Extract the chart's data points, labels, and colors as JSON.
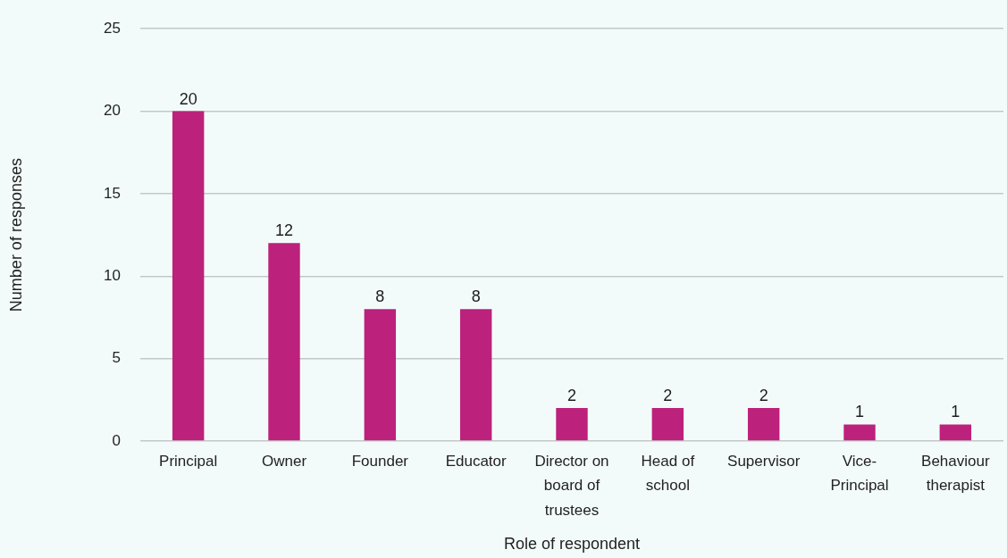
{
  "chart_data": {
    "type": "bar",
    "xlabel": "Role of respondent",
    "ylabel": "Number of responses",
    "categories": [
      "Principal",
      "Owner",
      "Founder",
      "Educator",
      "Director on board of trustees",
      "Head of school",
      "Supervisor",
      "Vice-Principal",
      "Behaviour therapist"
    ],
    "values": [
      20,
      12,
      8,
      8,
      2,
      2,
      2,
      1,
      1
    ],
    "color": "#bc217c",
    "ylim": [
      0,
      25
    ],
    "yticks": [
      0,
      5,
      10,
      15,
      20,
      25
    ],
    "grid": "y",
    "data_labels": true
  }
}
